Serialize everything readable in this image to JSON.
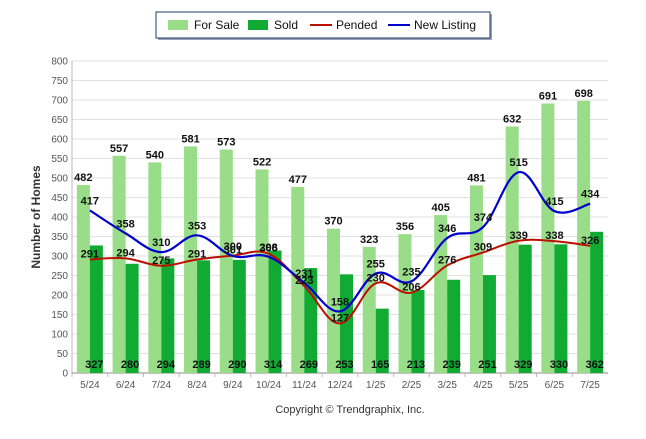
{
  "chart_data": {
    "type": "bar",
    "categories": [
      "5/24",
      "6/24",
      "7/24",
      "8/24",
      "9/24",
      "10/24",
      "11/24",
      "12/24",
      "1/25",
      "2/25",
      "3/25",
      "4/25",
      "5/25",
      "6/25",
      "7/25"
    ],
    "series": [
      {
        "name": "For Sale",
        "kind": "bar",
        "color": "#99dd88",
        "values": [
          482,
          557,
          540,
          581,
          573,
          522,
          477,
          370,
          323,
          356,
          405,
          481,
          632,
          691,
          698
        ]
      },
      {
        "name": "Sold",
        "kind": "bar",
        "color": "#11aa33",
        "values": [
          327,
          280,
          294,
          289,
          290,
          314,
          269,
          253,
          165,
          213,
          239,
          251,
          329,
          330,
          362
        ]
      },
      {
        "name": "Pended",
        "kind": "line",
        "color": "#bb1100",
        "values": [
          291,
          294,
          275,
          291,
          301,
          306,
          223,
          127,
          230,
          206,
          276,
          309,
          339,
          338,
          326
        ]
      },
      {
        "name": "New Listing",
        "kind": "line",
        "color": "#0000cc",
        "values": [
          417,
          358,
          310,
          353,
          300,
          298,
          231,
          158,
          255,
          235,
          346,
          374,
          515,
          415,
          434
        ]
      }
    ],
    "ylabel": "Number of Homes",
    "ylim": [
      0,
      800
    ],
    "yticks": [
      0,
      50,
      100,
      150,
      200,
      250,
      300,
      350,
      400,
      450,
      500,
      550,
      600,
      650,
      700,
      750,
      800
    ],
    "grid": true,
    "legend_position": "top-center",
    "copyright": "Copyright © Trendgraphix, Inc."
  }
}
